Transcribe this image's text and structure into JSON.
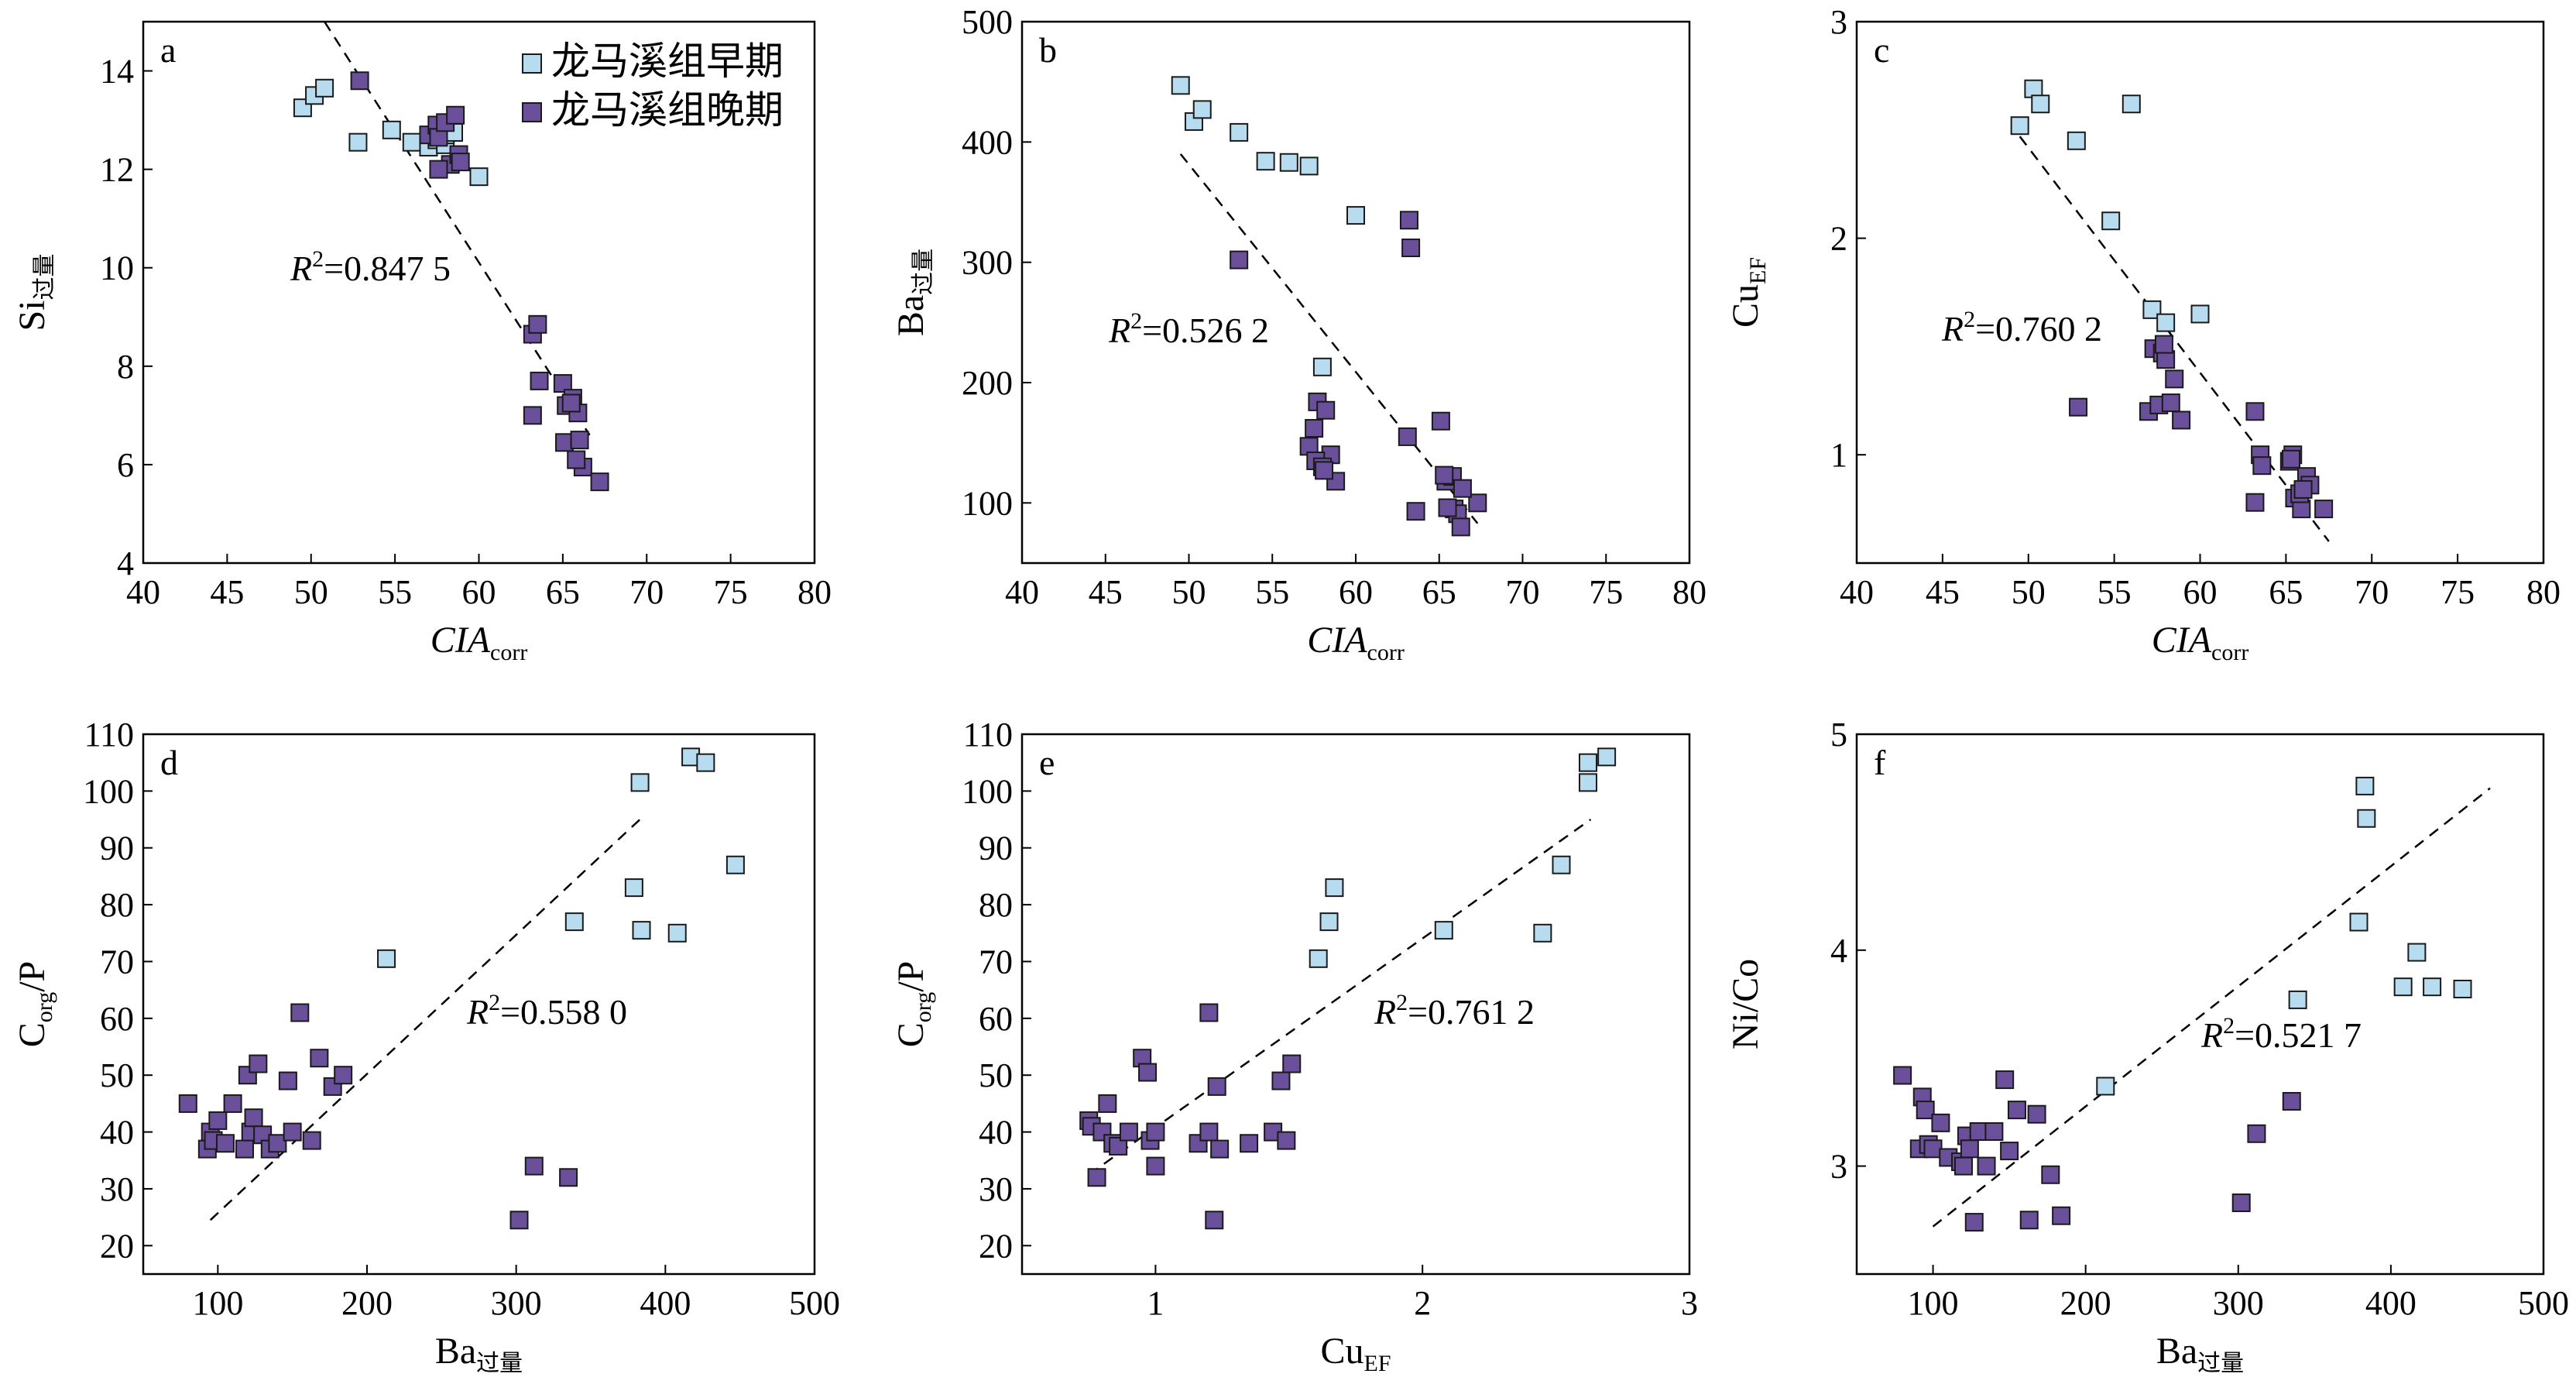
{
  "colors": {
    "early": "#b8dcef",
    "late": "#6a509a",
    "stroke": "#1a1a1a",
    "trend": "#000000"
  },
  "legend": {
    "early": "龙马溪组早期",
    "late": "龙马溪组晚期"
  },
  "chart_data": [
    {
      "id": "a",
      "type": "scatter",
      "panel_label": "a",
      "xlim": [
        40,
        80
      ],
      "xticks": [
        40,
        45,
        50,
        55,
        60,
        65,
        70,
        75,
        80
      ],
      "xtick_labels": [
        "40",
        "45",
        "50",
        "55",
        "60",
        "65",
        "70",
        "75",
        "80"
      ],
      "ylim": [
        4,
        15
      ],
      "yticks": [
        4,
        6,
        8,
        10,
        12,
        14
      ],
      "ytick_labels": [
        "4",
        "6",
        "8",
        "10",
        "12",
        "14"
      ],
      "xlabel": {
        "main": "CIA",
        "sub": "corr",
        "italic": true
      },
      "ylabel": {
        "main": "Si",
        "sub": "过量",
        "italic": false
      },
      "r2": {
        "prefix": "R",
        "sup": "2",
        "value": "=0.847 5"
      },
      "trend": {
        "x": [
          50.8,
          66.6
        ],
        "y": [
          15.0,
          6.6
        ]
      },
      "series": [
        {
          "key": "early",
          "name": "龙马溪组早期",
          "x": [
            49.5,
            50.2,
            50.8,
            52.8,
            54.8,
            56,
            57,
            57.5,
            58,
            58,
            58.5,
            60
          ],
          "y": [
            13.25,
            13.5,
            13.65,
            12.55,
            12.8,
            12.55,
            12.45,
            12.6,
            12.5,
            12.7,
            12.75,
            11.85
          ]
        },
        {
          "key": "late",
          "name": "龙马溪组晚期",
          "x": [
            52.9,
            57,
            57.5,
            57.6,
            58,
            58.3,
            58.6,
            58.8,
            58.9,
            57.6,
            63.2,
            63.5,
            63.6,
            63.2,
            65,
            65.2,
            65.6,
            65.1,
            65.9,
            66,
            66.2,
            67.2,
            65.8,
            65.5
          ],
          "y": [
            13.8,
            12.7,
            12.9,
            12.65,
            12.95,
            12.1,
            13.1,
            12.3,
            12.15,
            12.0,
            8.65,
            8.85,
            7.7,
            7.0,
            7.65,
            7.2,
            7.35,
            6.45,
            7.05,
            6.5,
            5.95,
            5.65,
            6.1,
            7.25
          ]
        }
      ]
    },
    {
      "id": "b",
      "type": "scatter",
      "panel_label": "b",
      "xlim": [
        40,
        80
      ],
      "xticks": [
        40,
        45,
        50,
        55,
        60,
        65,
        70,
        75,
        80
      ],
      "xtick_labels": [
        "40",
        "45",
        "50",
        "55",
        "60",
        "65",
        "70",
        "75",
        "80"
      ],
      "ylim": [
        50,
        500
      ],
      "yticks": [
        100,
        200,
        300,
        400,
        500
      ],
      "ytick_labels": [
        "100",
        "200",
        "300",
        "400",
        "500"
      ],
      "xlabel": {
        "main": "CIA",
        "sub": "corr",
        "italic": true
      },
      "ylabel": {
        "main": "Ba",
        "sub": "过量",
        "italic": false
      },
      "r2": {
        "prefix": "R",
        "sup": "2",
        "value": "=0.526 2"
      },
      "trend": {
        "x": [
          49.5,
          67.3
        ],
        "y": [
          390,
          83
        ]
      },
      "series": [
        {
          "key": "early",
          "name": "龙马溪组早期",
          "x": [
            49.5,
            50.3,
            50.8,
            53,
            54.6,
            56,
            57.2,
            58,
            60
          ],
          "y": [
            447,
            417,
            427,
            408,
            384,
            383,
            380,
            213,
            339
          ]
        },
        {
          "key": "late",
          "name": "龙马溪组晚期",
          "x": [
            53,
            57.2,
            57.5,
            57.7,
            58.2,
            58.5,
            58.8,
            57.6,
            58,
            58.1,
            63.2,
            63.3,
            63.6,
            63.1,
            65.1,
            65.4,
            65.8,
            65.9,
            66.1,
            66.3,
            67.3,
            65.5,
            66.4,
            65.3
          ],
          "y": [
            302,
            147,
            162,
            184,
            177,
            140,
            118,
            135,
            130,
            127,
            335,
            312,
            93,
            155,
            168,
            118,
            122,
            95,
            91,
            80,
            100,
            96,
            112,
            123
          ]
        }
      ]
    },
    {
      "id": "c",
      "type": "scatter",
      "panel_label": "c",
      "xlim": [
        40,
        80
      ],
      "xticks": [
        40,
        45,
        50,
        55,
        60,
        65,
        70,
        75,
        80
      ],
      "xtick_labels": [
        "40",
        "45",
        "50",
        "55",
        "60",
        "65",
        "70",
        "75",
        "80"
      ],
      "ylim": [
        0.5,
        3.0
      ],
      "yticks": [
        1,
        2,
        3
      ],
      "ytick_labels": [
        "1",
        "2",
        "3"
      ],
      "xlabel": {
        "main": "CIA",
        "sub": "corr",
        "italic": true
      },
      "ylabel": {
        "main": "Cu",
        "sub": "EF",
        "italic": false
      },
      "r2": {
        "prefix": "R",
        "sup": "2",
        "value": "=0.760 2"
      },
      "trend": {
        "x": [
          49.5,
          67.5
        ],
        "y": [
          2.47,
          0.6
        ]
      },
      "series": [
        {
          "key": "early",
          "name": "龙马溪组早期",
          "x": [
            49.5,
            50.3,
            50.7,
            52.8,
            54.8,
            56,
            57.2,
            58,
            60
          ],
          "y": [
            2.52,
            2.69,
            2.62,
            2.45,
            2.08,
            2.62,
            1.67,
            1.61,
            1.65
          ]
        },
        {
          "key": "late",
          "name": "龙马溪组晚期",
          "x": [
            52.9,
            57,
            57.3,
            57.6,
            57.8,
            58,
            58.3,
            58.5,
            58.9,
            57.9,
            63.2,
            63.5,
            63.6,
            63.2,
            65.2,
            65.4,
            65.5,
            65.9,
            66.2,
            66.4,
            67.2,
            65.3,
            65.8,
            66.0
          ],
          "y": [
            1.22,
            1.2,
            1.49,
            1.23,
            1.47,
            1.44,
            1.24,
            1.35,
            1.16,
            1.51,
            1.2,
            1.0,
            0.95,
            0.78,
            0.97,
            1.0,
            0.8,
            0.75,
            0.9,
            0.86,
            0.75,
            0.98,
            0.82,
            0.84
          ]
        }
      ]
    },
    {
      "id": "d",
      "type": "scatter",
      "panel_label": "d",
      "xlim": [
        50,
        500
      ],
      "xticks": [
        100,
        200,
        300,
        400,
        500
      ],
      "xtick_labels": [
        "100",
        "200",
        "300",
        "400",
        "500"
      ],
      "ylim": [
        15,
        110
      ],
      "yticks": [
        20,
        30,
        40,
        50,
        60,
        70,
        80,
        90,
        100,
        110
      ],
      "ytick_labels": [
        "20",
        "30",
        "40",
        "50",
        "60",
        "70",
        "80",
        "90",
        "100",
        "110"
      ],
      "xlabel": {
        "main": "Ba",
        "sub": "过量",
        "italic": false
      },
      "ylabel": {
        "main": "C",
        "sub": "org",
        "tail": "/P",
        "italic": false
      },
      "r2": {
        "prefix": "R",
        "sup": "2",
        "value": "=0.558 0"
      },
      "trend": {
        "x": [
          95,
          385
        ],
        "y": [
          24.5,
          95.5
        ]
      },
      "series": [
        {
          "key": "early",
          "name": "龙马溪组早期",
          "x": [
            213,
            339,
            379,
            383,
            384,
            408,
            417,
            427,
            447
          ],
          "y": [
            70.5,
            77,
            83,
            101.5,
            75.5,
            75,
            106,
            105,
            87
          ]
        },
        {
          "key": "late",
          "name": "龙马溪组晚期",
          "x": [
            80,
            93,
            95,
            97,
            100,
            105,
            110,
            118,
            120,
            122,
            124,
            127,
            130,
            135,
            140,
            147,
            150,
            155,
            163,
            168,
            177,
            184,
            302,
            312,
            335
          ],
          "y": [
            45,
            37,
            40,
            38.5,
            42,
            38,
            45,
            37,
            50,
            40,
            42.5,
            52,
            39.5,
            37,
            38,
            49,
            40,
            61,
            38.5,
            53,
            48,
            50,
            24.5,
            34,
            32
          ]
        }
      ]
    },
    {
      "id": "e",
      "type": "scatter",
      "panel_label": "e",
      "xlim": [
        0.5,
        3.0
      ],
      "xticks": [
        1,
        2,
        3
      ],
      "xtick_labels": [
        "1",
        "2",
        "3"
      ],
      "ylim": [
        15,
        110
      ],
      "yticks": [
        20,
        30,
        40,
        50,
        60,
        70,
        80,
        90,
        100,
        110
      ],
      "ytick_labels": [
        "20",
        "30",
        "40",
        "50",
        "60",
        "70",
        "80",
        "90",
        "100",
        "110"
      ],
      "xlabel": {
        "main": "Cu",
        "sub": "EF",
        "italic": false
      },
      "ylabel": {
        "main": "C",
        "sub": "org",
        "tail": "/P",
        "italic": false
      },
      "r2": {
        "prefix": "R",
        "sup": "2",
        "value": "=0.761 2"
      },
      "trend": {
        "x": [
          0.75,
          2.63
        ],
        "y": [
          32.5,
          95
        ]
      },
      "series": [
        {
          "key": "early",
          "name": "龙马溪组早期",
          "x": [
            1.61,
            1.65,
            1.67,
            2.08,
            2.45,
            2.52,
            2.62,
            2.62,
            2.69
          ],
          "y": [
            70.5,
            77,
            83,
            75.5,
            75,
            87,
            101.5,
            105,
            106
          ]
        },
        {
          "key": "late",
          "name": "龙马溪组晚期",
          "x": [
            0.75,
            0.76,
            0.78,
            0.8,
            0.82,
            0.84,
            0.86,
            0.9,
            0.95,
            0.97,
            0.98,
            1.0,
            1.0,
            1.16,
            1.2,
            1.2,
            1.22,
            1.23,
            1.24,
            1.35,
            1.44,
            1.47,
            1.49,
            1.51
          ],
          "y": [
            42,
            41,
            32,
            40,
            45,
            38,
            37.5,
            40,
            53,
            50.5,
            38.5,
            34,
            40,
            38,
            61,
            40,
            24.5,
            48,
            37,
            38,
            40,
            49,
            38.5,
            52
          ]
        }
      ]
    },
    {
      "id": "f",
      "type": "scatter",
      "panel_label": "f",
      "xlim": [
        50,
        500
      ],
      "xticks": [
        100,
        200,
        300,
        400,
        500
      ],
      "xtick_labels": [
        "100",
        "200",
        "300",
        "400",
        "500"
      ],
      "ylim": [
        2.5,
        5.0
      ],
      "yticks": [
        3,
        4,
        5
      ],
      "ytick_labels": [
        "3",
        "4",
        "5"
      ],
      "xlabel": {
        "main": "Ba",
        "sub": "过量",
        "italic": false
      },
      "ylabel": {
        "main": "Ni/Co",
        "sub": "",
        "italic": false
      },
      "r2": {
        "prefix": "R",
        "sup": "2",
        "value": "=0.521 7"
      },
      "trend": {
        "x": [
          100,
          465
        ],
        "y": [
          2.72,
          4.75
        ]
      },
      "series": [
        {
          "key": "early",
          "name": "龙马溪组早期",
          "x": [
            213,
            339,
            379,
            383,
            384,
            408,
            417,
            427,
            447
          ],
          "y": [
            3.37,
            3.77,
            4.13,
            4.76,
            4.61,
            3.83,
            3.99,
            3.83,
            3.82
          ]
        },
        {
          "key": "late",
          "name": "龙马溪组晚期",
          "x": [
            80,
            91,
            93,
            95,
            97,
            100,
            105,
            110,
            118,
            120,
            122,
            124,
            127,
            130,
            135,
            140,
            147,
            150,
            155,
            163,
            168,
            177,
            184,
            302,
            312,
            335
          ],
          "y": [
            3.42,
            3.08,
            3.32,
            3.26,
            3.1,
            3.08,
            3.2,
            3.04,
            3.02,
            3.0,
            3.14,
            3.08,
            2.74,
            3.16,
            3.0,
            3.16,
            3.4,
            3.07,
            3.26,
            2.75,
            3.24,
            2.96,
            2.77,
            2.83,
            3.15,
            3.3
          ]
        }
      ]
    }
  ]
}
